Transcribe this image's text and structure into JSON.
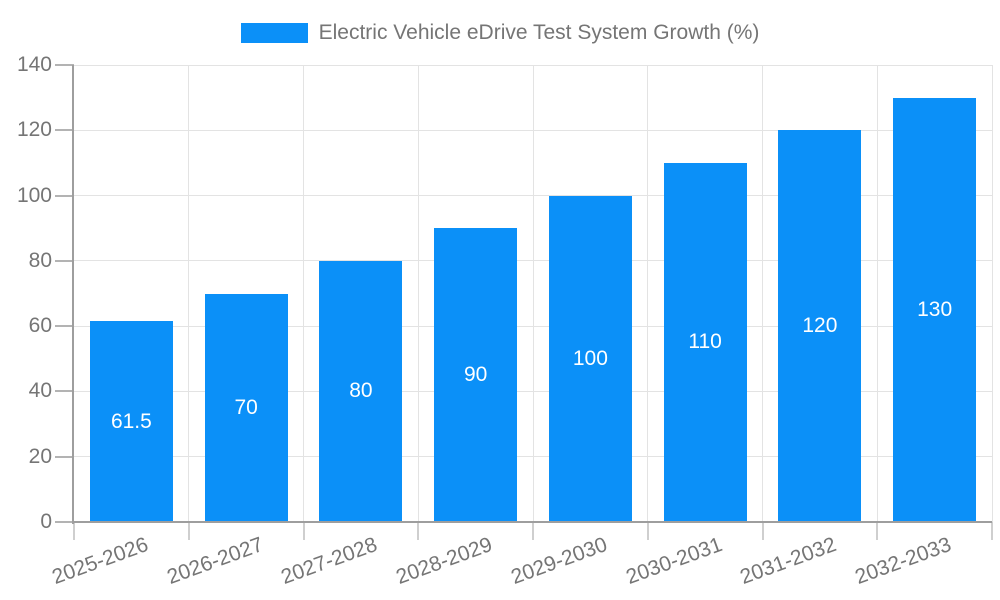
{
  "chart_data": {
    "type": "bar",
    "title": "",
    "legend": "Electric Vehicle eDrive Test System Growth (%)",
    "legend_position": "top-center",
    "categories": [
      "2025-2026",
      "2026-2027",
      "2027-2028",
      "2028-2029",
      "2029-2030",
      "2030-2031",
      "2031-2032",
      "2032-2033"
    ],
    "values": [
      61.5,
      70,
      80,
      90,
      100,
      110,
      120,
      130
    ],
    "value_labels": [
      "61.5",
      "70",
      "80",
      "90",
      "100",
      "110",
      "120",
      "130"
    ],
    "value_label_position": "inside-center",
    "xlabel": "",
    "ylabel": "",
    "ylim": [
      0,
      140
    ],
    "yticks": [
      0,
      20,
      40,
      60,
      80,
      100,
      120,
      140
    ],
    "grid": {
      "horizontal": true,
      "vertical": true
    },
    "x_tick_label_rotation_deg": -20,
    "colors": {
      "bar": "#0b90f8",
      "axis_text": "#757575",
      "legend_text": "#757575",
      "bar_label_text": "#ffffff",
      "gridline": "#e3e3e3",
      "axis_line": "#9e9e9e",
      "y_tick": "#b3b3b3",
      "x_tick": "#cfcfcf",
      "background": "#ffffff"
    }
  }
}
